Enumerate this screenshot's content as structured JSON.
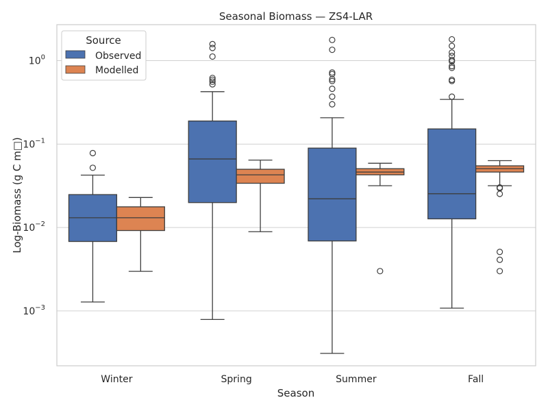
{
  "chart_data": {
    "type": "box",
    "title": "Seasonal Biomass — ZS4-LAR",
    "xlabel": "Season",
    "ylabel": "Log-Biomass (g C m□)",
    "yscale": "log",
    "ylim": [
      0.00022,
      2.7
    ],
    "y_ticks": [
      {
        "value": 1,
        "base": "10",
        "exp": "0"
      },
      {
        "value": 0.1,
        "base": "10",
        "exp": "−1"
      },
      {
        "value": 0.01,
        "base": "10",
        "exp": "−2"
      },
      {
        "value": 0.001,
        "base": "10",
        "exp": "−3"
      }
    ],
    "grid": true,
    "categories": [
      "Winter",
      "Spring",
      "Summer",
      "Fall"
    ],
    "legend": {
      "title": "Source",
      "placement": "top-left"
    },
    "series": [
      {
        "name": "Observed",
        "color": "#4c72b0",
        "boxes": [
          {
            "whislo": 0.00128,
            "q1": 0.0068,
            "med": 0.0131,
            "q3": 0.0248,
            "whishi": 0.0425,
            "fliers": [
              0.052,
              0.078
            ]
          },
          {
            "whislo": 0.00079,
            "q1": 0.0199,
            "med": 0.0663,
            "q3": 0.189,
            "whishi": 0.425,
            "fliers": [
              0.52,
              0.56,
              0.59,
              0.62,
              1.12,
              1.42,
              1.58
            ]
          },
          {
            "whislo": 0.00031,
            "q1": 0.0069,
            "med": 0.0221,
            "q3": 0.0895,
            "whishi": 0.207,
            "fliers": [
              0.3,
              0.37,
              0.46,
              0.57,
              0.6,
              0.69,
              0.72,
              1.35,
              1.77
            ]
          },
          {
            "whislo": 0.00108,
            "q1": 0.0127,
            "med": 0.0254,
            "q3": 0.152,
            "whishi": 0.343,
            "fliers": [
              0.37,
              0.57,
              0.59,
              0.82,
              0.86,
              0.98,
              1.02,
              1.14,
              1.25,
              1.5,
              1.8
            ]
          }
        ]
      },
      {
        "name": "Modelled",
        "color": "#dd8452",
        "boxes": [
          {
            "whislo": 0.00298,
            "q1": 0.0092,
            "med": 0.0131,
            "q3": 0.0177,
            "whishi": 0.0229,
            "fliers": []
          },
          {
            "whislo": 0.0089,
            "q1": 0.0339,
            "med": 0.0428,
            "q3": 0.0499,
            "whishi": 0.0642,
            "fliers": []
          },
          {
            "whislo": 0.0317,
            "q1": 0.0428,
            "med": 0.0462,
            "q3": 0.0507,
            "whishi": 0.0589,
            "fliers": [
              0.003
            ]
          },
          {
            "whislo": 0.0317,
            "q1": 0.0462,
            "med": 0.0507,
            "q3": 0.0549,
            "whishi": 0.0633,
            "fliers": [
              0.003,
              0.0041,
              0.0051,
              0.0253,
              0.0296,
              0.0302
            ]
          }
        ]
      }
    ]
  }
}
